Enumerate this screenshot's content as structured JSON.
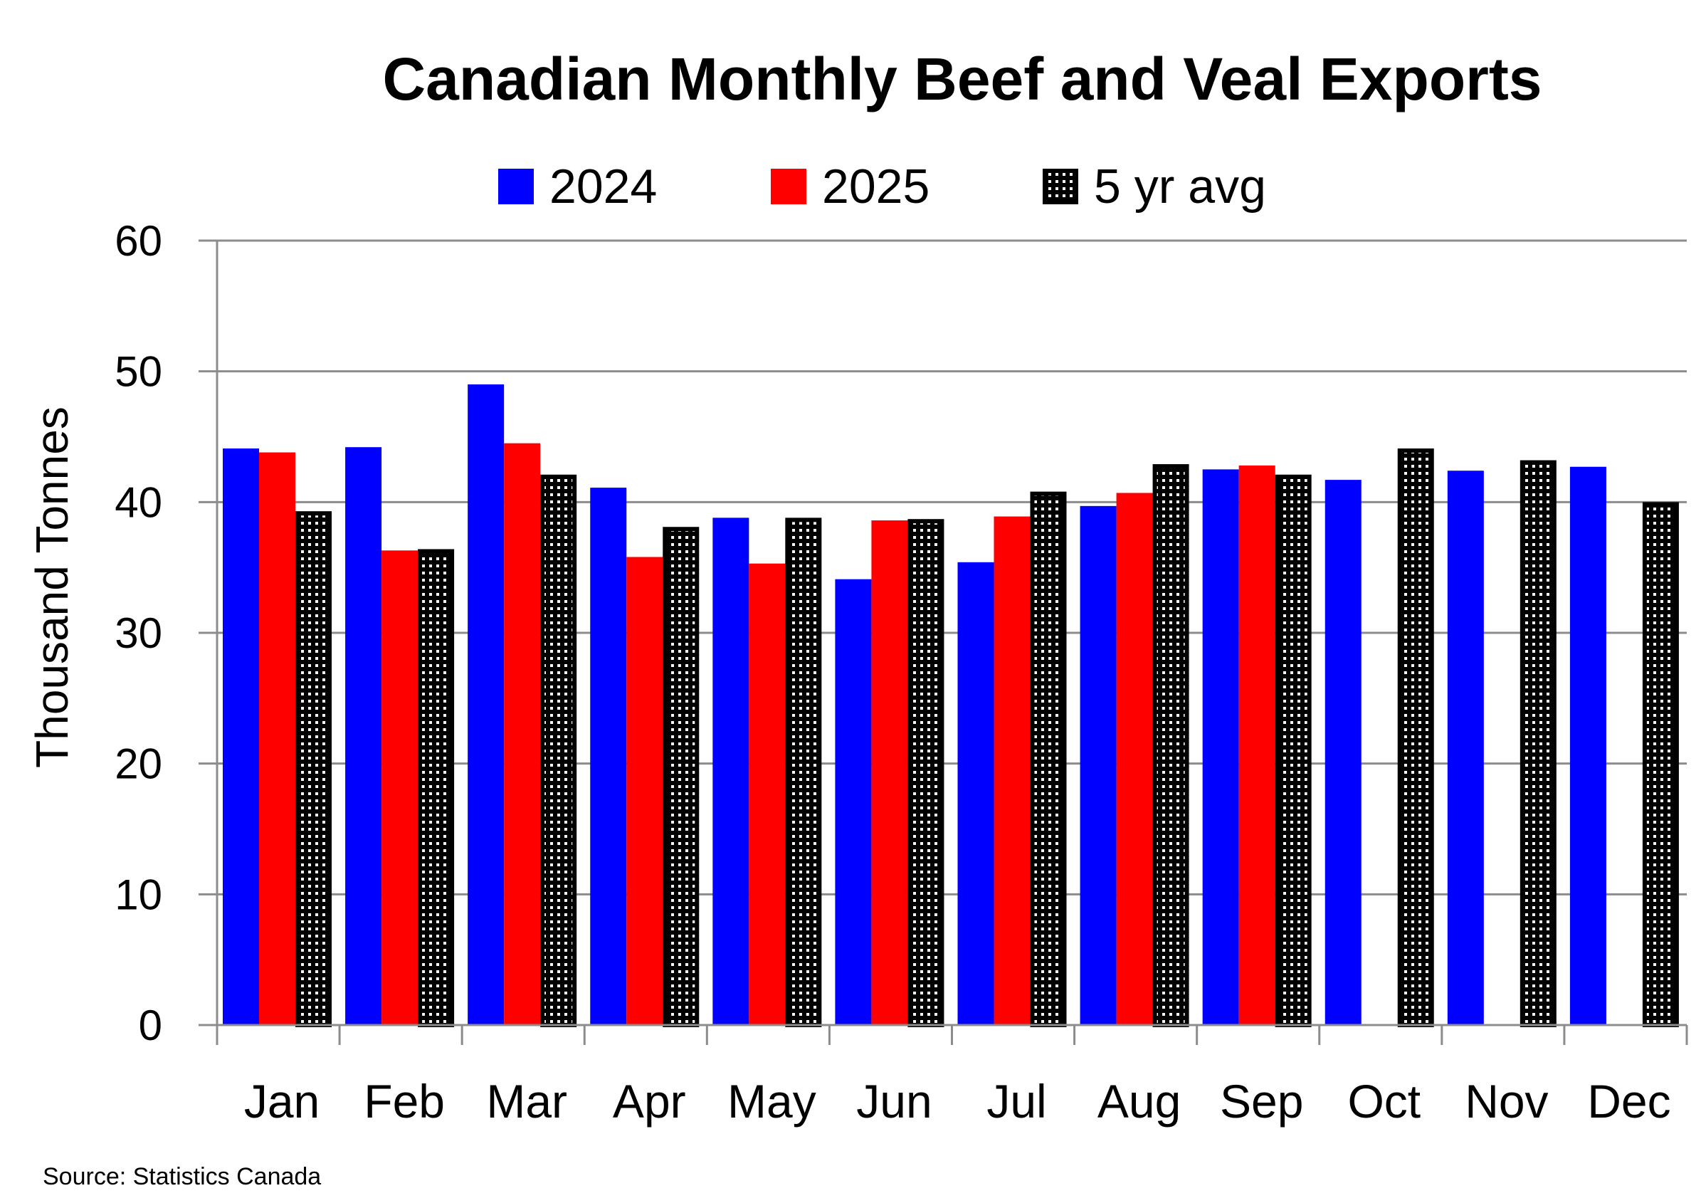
{
  "chart_data": {
    "type": "bar",
    "title": "Canadian Monthly Beef and Veal Exports",
    "xlabel": "",
    "ylabel": "Thousand Tonnes",
    "ylim": [
      0,
      60
    ],
    "yticks": [
      0,
      10,
      20,
      30,
      40,
      50,
      60
    ],
    "grid": true,
    "legend_placement": "top-center",
    "categories": [
      "Jan",
      "Feb",
      "Mar",
      "Apr",
      "May",
      "Jun",
      "Jul",
      "Aug",
      "Sep",
      "Oct",
      "Nov",
      "Dec"
    ],
    "series": [
      {
        "name": "2024",
        "color": "#0000FF",
        "values": [
          44.1,
          44.2,
          49.0,
          41.1,
          38.8,
          34.1,
          35.4,
          39.7,
          42.5,
          41.7,
          42.4,
          42.7
        ]
      },
      {
        "name": "2025",
        "color": "#FF0000",
        "values": [
          43.8,
          36.3,
          44.5,
          35.8,
          35.3,
          38.6,
          38.9,
          40.7,
          42.8,
          null,
          null,
          null
        ]
      },
      {
        "name": "5 yr avg",
        "color": "#000000",
        "pattern": "dotted",
        "values": [
          39.3,
          36.4,
          42.1,
          38.1,
          38.8,
          38.7,
          40.8,
          42.9,
          42.1,
          44.1,
          43.2,
          40.0
        ]
      }
    ],
    "source": "Source: Statistics Canada"
  }
}
